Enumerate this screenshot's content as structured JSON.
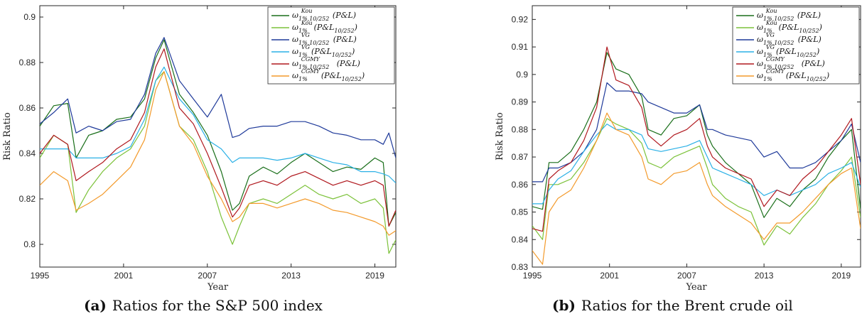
{
  "captions": [
    {
      "tag": "(a)",
      "text": "Ratios for the S&P 500 index"
    },
    {
      "tag": "(b)",
      "text": "Ratios for the Brent crude oil"
    }
  ],
  "legend_labels": [
    "ω_{1%,10/252}^{Kou}(P&L)",
    "ω_{1%}^{Kou}(P&L_{10/252})",
    "ω_{1%,10/252}^{VG}(P&L)",
    "ω_{1%}^{VG}(P&L_{10/252})",
    "ω_{1%,10/252}^{CGMY}(P&L)",
    "ω_{1%}^{CGMY}(P&L_{10/252})"
  ],
  "chart_data": [
    {
      "type": "line",
      "xlabel": "Year",
      "ylabel": "Risk Ratio",
      "xlim": [
        1995,
        2020.5
      ],
      "ylim": [
        0.79,
        0.905
      ],
      "xticks": [
        1995,
        2001,
        2007,
        2013,
        2019
      ],
      "yticks": [
        0.8,
        0.82,
        0.84,
        0.86,
        0.88,
        0.9
      ],
      "ytick_labels": [
        "0.8",
        "0.82",
        "0.84",
        "0.86",
        "0.88",
        "0.9"
      ],
      "grid": false,
      "legend_position": "top-right",
      "x": [
        1995.0,
        1996.0,
        1997.0,
        1997.6,
        1998.5,
        1999.5,
        2000.5,
        2001.5,
        2002.5,
        2003.3,
        2003.9,
        2005.0,
        2006.0,
        2007.0,
        2008.0,
        2008.8,
        2009.3,
        2010.0,
        2011.0,
        2012.0,
        2013.0,
        2014.0,
        2015.0,
        2016.0,
        2017.0,
        2018.0,
        2019.0,
        2019.6,
        2020.0,
        2020.5
      ],
      "series": [
        {
          "color": "#1a6f1a",
          "values": [
            0.852,
            0.861,
            0.862,
            0.838,
            0.848,
            0.85,
            0.855,
            0.856,
            0.864,
            0.882,
            0.89,
            0.866,
            0.858,
            0.848,
            0.832,
            0.815,
            0.818,
            0.83,
            0.834,
            0.831,
            0.836,
            0.84,
            0.836,
            0.832,
            0.834,
            0.833,
            0.838,
            0.836,
            0.808,
            0.814
          ]
        },
        {
          "color": "#7cc23a",
          "values": [
            0.838,
            0.848,
            0.844,
            0.814,
            0.824,
            0.832,
            0.838,
            0.842,
            0.852,
            0.872,
            0.876,
            0.852,
            0.846,
            0.832,
            0.812,
            0.8,
            0.808,
            0.818,
            0.82,
            0.818,
            0.822,
            0.826,
            0.822,
            0.82,
            0.822,
            0.818,
            0.82,
            0.816,
            0.796,
            0.802
          ]
        },
        {
          "color": "#1f3a9a",
          "values": [
            0.853,
            0.858,
            0.864,
            0.849,
            0.852,
            0.85,
            0.854,
            0.855,
            0.866,
            0.884,
            0.891,
            0.872,
            0.864,
            0.856,
            0.866,
            0.847,
            0.848,
            0.851,
            0.852,
            0.852,
            0.854,
            0.854,
            0.852,
            0.849,
            0.848,
            0.846,
            0.846,
            0.844,
            0.849,
            0.838
          ]
        },
        {
          "color": "#2ab0e6",
          "values": [
            0.842,
            0.842,
            0.842,
            0.838,
            0.838,
            0.838,
            0.84,
            0.843,
            0.855,
            0.872,
            0.878,
            0.864,
            0.857,
            0.846,
            0.842,
            0.836,
            0.838,
            0.838,
            0.838,
            0.837,
            0.838,
            0.84,
            0.838,
            0.836,
            0.835,
            0.832,
            0.832,
            0.831,
            0.83,
            0.827
          ]
        },
        {
          "color": "#b0181e",
          "values": [
            0.84,
            0.848,
            0.844,
            0.828,
            0.832,
            0.836,
            0.842,
            0.846,
            0.858,
            0.878,
            0.886,
            0.86,
            0.853,
            0.84,
            0.825,
            0.812,
            0.816,
            0.826,
            0.828,
            0.826,
            0.83,
            0.832,
            0.829,
            0.826,
            0.828,
            0.826,
            0.828,
            0.826,
            0.808,
            0.815
          ]
        },
        {
          "color": "#f39a2b",
          "values": [
            0.826,
            0.832,
            0.828,
            0.815,
            0.818,
            0.822,
            0.828,
            0.834,
            0.846,
            0.868,
            0.876,
            0.852,
            0.844,
            0.83,
            0.82,
            0.81,
            0.812,
            0.818,
            0.818,
            0.816,
            0.818,
            0.82,
            0.818,
            0.815,
            0.814,
            0.812,
            0.81,
            0.808,
            0.804,
            0.806
          ]
        }
      ]
    },
    {
      "type": "line",
      "xlabel": "Year",
      "ylabel": "Risk Ratio",
      "xlim": [
        1995,
        2020.5
      ],
      "ylim": [
        0.83,
        0.925
      ],
      "xticks": [
        1995,
        2001,
        2007,
        2013,
        2019
      ],
      "yticks": [
        0.83,
        0.84,
        0.85,
        0.86,
        0.87,
        0.88,
        0.89,
        0.9,
        0.91,
        0.92
      ],
      "ytick_labels": [
        "0.83",
        "0.84",
        "0.85",
        "0.86",
        "0.87",
        "0.88",
        "0.89",
        "0.9",
        "0.91",
        "0.92"
      ],
      "grid": false,
      "legend_position": "top-right",
      "x": [
        1995.0,
        1995.8,
        1996.3,
        1997.0,
        1998.0,
        1999.0,
        2000.0,
        2000.8,
        2001.5,
        2002.5,
        2003.5,
        2004.0,
        2005.0,
        2006.0,
        2007.0,
        2008.0,
        2008.6,
        2009.0,
        2010.0,
        2011.0,
        2012.0,
        2013.0,
        2014.0,
        2015.0,
        2016.0,
        2017.0,
        2018.0,
        2019.0,
        2019.8,
        2020.5
      ],
      "series": [
        {
          "color": "#1a6f1a",
          "values": [
            0.852,
            0.851,
            0.868,
            0.868,
            0.872,
            0.88,
            0.89,
            0.908,
            0.902,
            0.9,
            0.892,
            0.88,
            0.878,
            0.884,
            0.885,
            0.889,
            0.878,
            0.874,
            0.868,
            0.864,
            0.86,
            0.848,
            0.855,
            0.852,
            0.858,
            0.862,
            0.87,
            0.876,
            0.88,
            0.851
          ]
        },
        {
          "color": "#7cc23a",
          "values": [
            0.845,
            0.84,
            0.86,
            0.86,
            0.862,
            0.868,
            0.876,
            0.884,
            0.882,
            0.88,
            0.875,
            0.868,
            0.866,
            0.87,
            0.872,
            0.874,
            0.866,
            0.86,
            0.855,
            0.852,
            0.85,
            0.838,
            0.845,
            0.842,
            0.848,
            0.853,
            0.86,
            0.865,
            0.87,
            0.848
          ]
        },
        {
          "color": "#1f3a9a",
          "values": [
            0.861,
            0.861,
            0.866,
            0.866,
            0.868,
            0.872,
            0.88,
            0.897,
            0.894,
            0.894,
            0.893,
            0.89,
            0.888,
            0.886,
            0.886,
            0.889,
            0.88,
            0.88,
            0.878,
            0.877,
            0.876,
            0.87,
            0.872,
            0.866,
            0.866,
            0.868,
            0.872,
            0.876,
            0.882,
            0.868
          ]
        },
        {
          "color": "#2ab0e6",
          "values": [
            0.853,
            0.853,
            0.858,
            0.862,
            0.865,
            0.872,
            0.878,
            0.882,
            0.88,
            0.88,
            0.878,
            0.873,
            0.872,
            0.873,
            0.874,
            0.876,
            0.87,
            0.866,
            0.864,
            0.862,
            0.86,
            0.856,
            0.858,
            0.856,
            0.858,
            0.86,
            0.864,
            0.866,
            0.868,
            0.859
          ]
        },
        {
          "color": "#b0181e",
          "values": [
            0.844,
            0.843,
            0.862,
            0.865,
            0.868,
            0.876,
            0.888,
            0.91,
            0.898,
            0.896,
            0.888,
            0.878,
            0.874,
            0.878,
            0.88,
            0.884,
            0.874,
            0.87,
            0.866,
            0.864,
            0.862,
            0.852,
            0.858,
            0.856,
            0.862,
            0.866,
            0.872,
            0.878,
            0.884,
            0.86
          ]
        },
        {
          "color": "#f39a2b",
          "values": [
            0.836,
            0.831,
            0.85,
            0.855,
            0.858,
            0.866,
            0.876,
            0.886,
            0.88,
            0.878,
            0.87,
            0.862,
            0.86,
            0.864,
            0.865,
            0.868,
            0.86,
            0.856,
            0.852,
            0.849,
            0.846,
            0.84,
            0.846,
            0.846,
            0.85,
            0.855,
            0.86,
            0.864,
            0.866,
            0.844
          ]
        }
      ]
    }
  ]
}
